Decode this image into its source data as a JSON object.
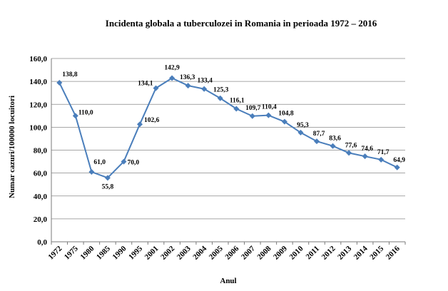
{
  "chart_data": {
    "type": "line",
    "title": "Incidenta globala a tuberculozei  in Romania in perioada 1972 – 2016",
    "xlabel": "Anul",
    "ylabel": "Numar cazuri/100000 locuitori",
    "categories": [
      "1972",
      "1975",
      "1980",
      "1985",
      "1990",
      "1995",
      "2001",
      "2002",
      "2003",
      "2004",
      "2005",
      "2006",
      "2007",
      "2008",
      "2009",
      "2010",
      "2011",
      "2012",
      "2013",
      "2014",
      "2015",
      "2016"
    ],
    "series": [
      {
        "values": [
          138.8,
          110.0,
          61.0,
          55.8,
          70.0,
          102.6,
          134.1,
          142.9,
          136.3,
          133.4,
          125.3,
          116.1,
          109.7,
          110.4,
          104.8,
          95.3,
          87.7,
          83.6,
          77.6,
          74.6,
          71.7,
          64.9
        ],
        "labels": [
          "138,8",
          "110,0",
          "61,0",
          "55,8",
          "70,0",
          "102,6",
          "134,1",
          "142,9",
          "136,3",
          "133,4",
          "125,3",
          "116,1",
          "109,7",
          "110,4",
          "104,8",
          "95,3",
          "87,7",
          "83,6",
          "77,6",
          "74,6",
          "71,7",
          "64,9"
        ],
        "color": "#4a7ebb"
      }
    ],
    "ylim": [
      0,
      160
    ],
    "yticks": [
      "0,0",
      "20,0",
      "40,0",
      "60,0",
      "80,0",
      "100,0",
      "120,0",
      "140,0",
      "160,0"
    ],
    "grid": true,
    "legend": "none"
  }
}
